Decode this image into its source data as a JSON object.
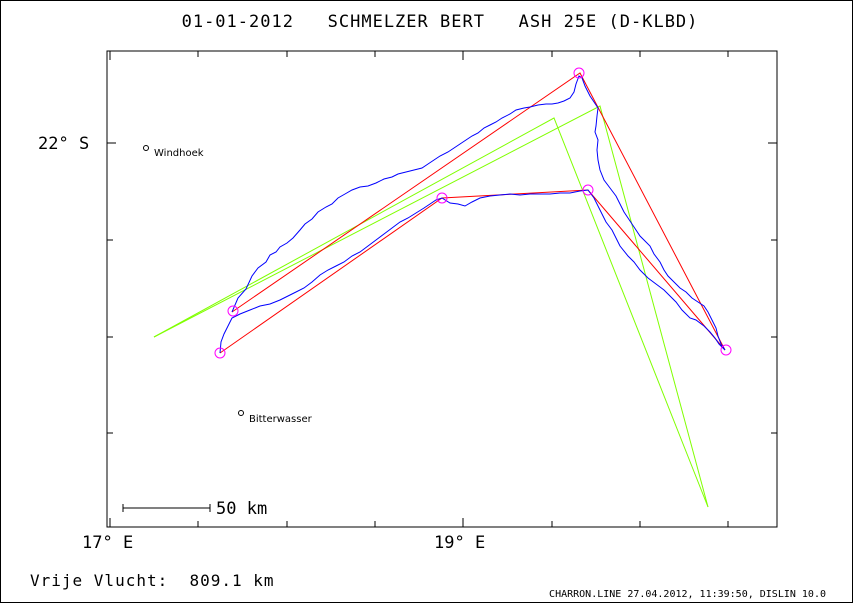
{
  "header": {
    "title": "01-01-2012   SCHMELZER BERT   ASH 25E (D-KLBD)"
  },
  "axes": {
    "lat_label": "22° S",
    "lon_labels": [
      "17° E",
      "19° E"
    ]
  },
  "places": [
    {
      "name": "Windhoek"
    },
    {
      "name": "Bitterwasser"
    }
  ],
  "scale_bar": {
    "label": "50 km"
  },
  "footer": {
    "distance": "Vrije Vlucht:  809.1 km",
    "info": "CHARRON.LINE 27.04.2012, 11:39:50, DISLIN 10.0"
  },
  "colors": {
    "track": "#0000ff",
    "task_red": "#ff0000",
    "task_green": "#80ff00",
    "turnpoint": "#ff00ff",
    "frame": "#000000"
  }
}
